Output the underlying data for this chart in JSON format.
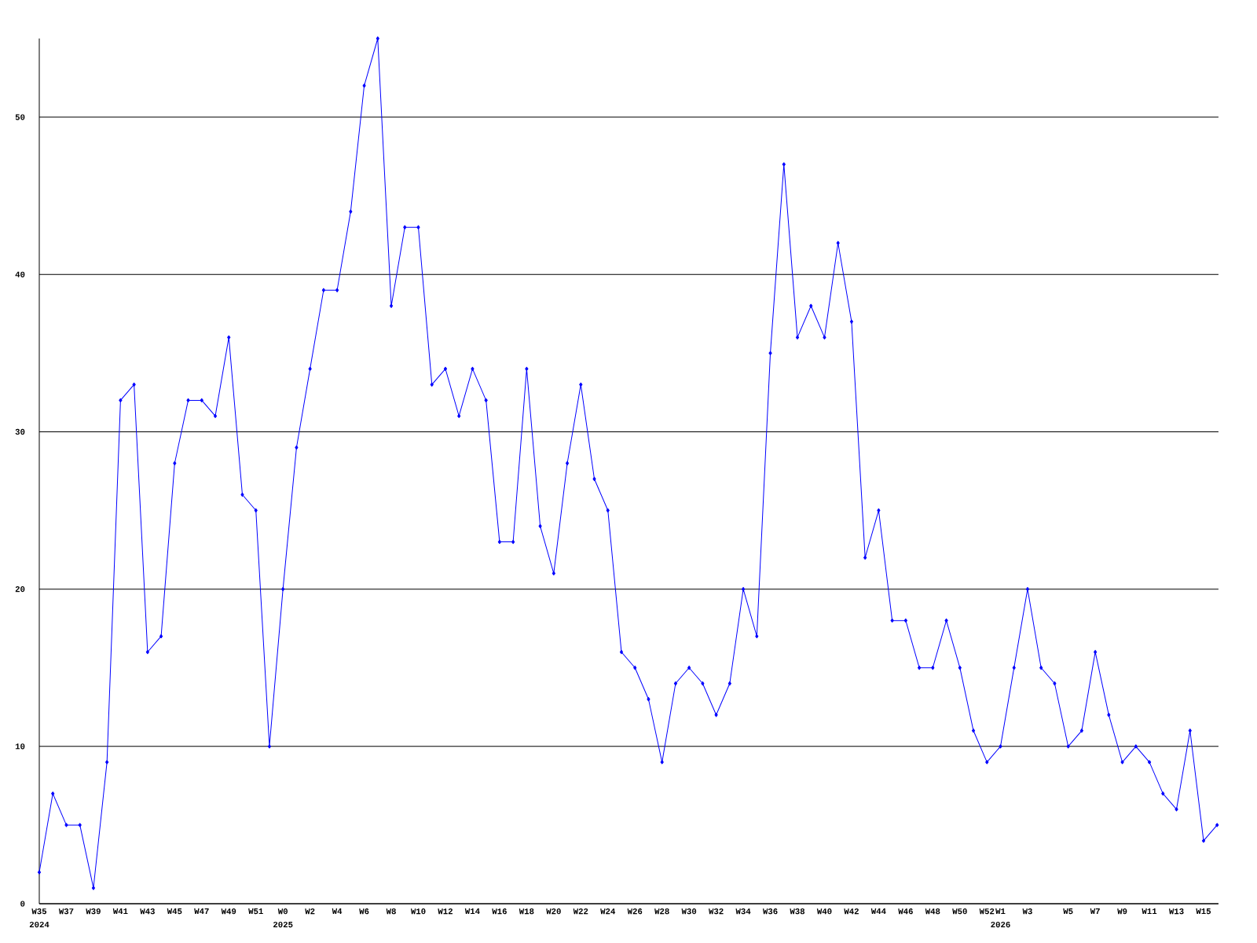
{
  "chart_data": {
    "type": "line",
    "categories": [
      "W35",
      null,
      "W37",
      null,
      "W39",
      null,
      "W41",
      null,
      "W43",
      null,
      "W45",
      null,
      "W47",
      null,
      "W49",
      null,
      "W51",
      null,
      "W0",
      null,
      "W2",
      null,
      "W4",
      null,
      "W6",
      null,
      "W8",
      null,
      "W10",
      null,
      "W12",
      null,
      "W14",
      null,
      "W16",
      null,
      "W18",
      null,
      "W20",
      null,
      "W22",
      null,
      "W24",
      null,
      "W26",
      null,
      "W28",
      null,
      "W30",
      null,
      "W32",
      null,
      "W34",
      null,
      "W36",
      null,
      "W38",
      null,
      "W40",
      null,
      "W42",
      null,
      "W44",
      null,
      "W46",
      null,
      "W48",
      null,
      "W50",
      null,
      "W52",
      "W1",
      null,
      "W3",
      null,
      null,
      "W5",
      null,
      "W7",
      null,
      "W9",
      null,
      "W11",
      null,
      "W13",
      null,
      "W15",
      null
    ],
    "values": [
      2,
      7,
      5,
      5,
      1,
      9,
      32,
      33,
      16,
      17,
      28,
      32,
      32,
      31,
      36,
      26,
      25,
      10,
      20,
      29,
      34,
      39,
      39,
      44,
      52,
      55,
      38,
      43,
      43,
      33,
      34,
      31,
      34,
      32,
      23,
      23,
      34,
      24,
      21,
      28,
      33,
      27,
      25,
      16,
      15,
      13,
      9,
      14,
      15,
      14,
      12,
      14,
      20,
      17,
      35,
      47,
      36,
      38,
      36,
      42,
      37,
      22,
      25,
      18,
      18,
      15,
      15,
      18,
      15,
      11,
      9,
      10,
      15,
      20,
      15,
      14,
      10,
      11,
      16,
      12,
      9,
      10,
      9,
      7,
      6,
      11,
      4,
      5
    ],
    "color": "#0000ff",
    "marker": "diamond",
    "grid": "y",
    "ylim": [
      0,
      55
    ],
    "yticks": [
      0,
      10,
      20,
      30,
      40,
      50
    ],
    "annotations": [
      "2024",
      "2025",
      "2026"
    ]
  }
}
